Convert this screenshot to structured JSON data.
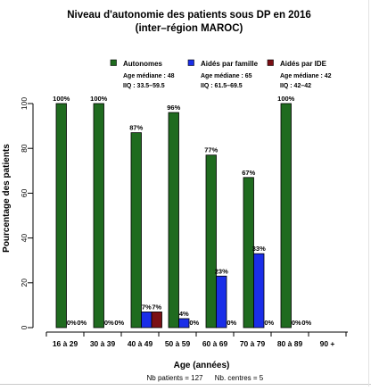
{
  "chart_data": {
    "type": "bar",
    "title_line1": "Niveau d'autonomie des patients sous DP en 2016",
    "title_line2": "(inter–région MAROC)",
    "xlabel": "Age (années)",
    "ylabel": "Pourcentage des patients",
    "ylim": [
      0,
      100
    ],
    "yticks": [
      "0",
      "20",
      "40",
      "60",
      "80",
      "100"
    ],
    "grid": false,
    "legend_position": "top-right",
    "categories": [
      "16 à 29",
      "30 à 39",
      "40 à 49",
      "50 à 59",
      "60 à 69",
      "70 à 79",
      "80 à 89",
      "90 +"
    ],
    "series": [
      {
        "name": "Autonomes",
        "color": "#1f6b1f",
        "values": [
          100,
          100,
          87,
          96,
          77,
          67,
          100,
          null
        ],
        "labels": [
          "100%",
          "100%",
          "87%",
          "96%",
          "77%",
          "67%",
          "100%",
          ""
        ],
        "stats": [
          "Age médiane : 48",
          "IIQ : 33.5–59.5"
        ]
      },
      {
        "name": "Aidés par famille",
        "color": "#1a2ee8",
        "values": [
          0,
          0,
          7,
          4,
          23,
          33,
          0,
          null
        ],
        "labels": [
          "0%",
          "0%",
          "7%",
          "4%",
          "23%",
          "33%",
          "0%",
          ""
        ],
        "stats": [
          "Age médiane : 65",
          "IIQ : 61.5–69.5"
        ]
      },
      {
        "name": "Aidés par IDE",
        "color": "#7a0f14",
        "values": [
          0,
          0,
          7,
          0,
          0,
          0,
          0,
          null
        ],
        "labels": [
          "0%",
          "0%",
          "7%",
          "0%",
          "0%",
          "0%",
          "0%",
          ""
        ],
        "stats": [
          "Age médiane : 42",
          "IIQ : 42–42"
        ]
      }
    ],
    "footnote_left": "Nb patients = 127",
    "footnote_right": "Nb. centres = 5"
  }
}
